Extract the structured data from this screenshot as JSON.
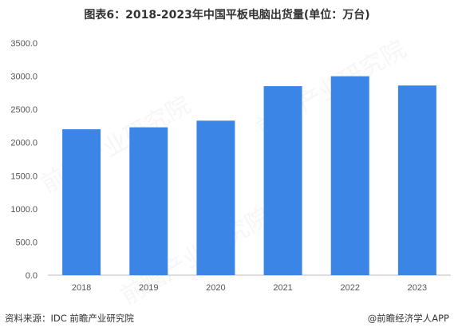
{
  "title": "图表6：2018-2023年中国平板电脑出货量(单位：万台)",
  "source": "资料来源：IDC 前瞻产业研究院",
  "brand": "@前瞻经济学人APP",
  "watermark": "前瞻产业研究院",
  "colors": {
    "bar": "#3A85E6",
    "axis": "#BBBBBB",
    "text": "#333333",
    "tick_text": "#555555"
  },
  "chart_data": {
    "type": "bar",
    "title": "图表6：2018-2023年中国平板电脑出货量(单位：万台)",
    "xlabel": "",
    "ylabel": "",
    "categories": [
      "2018",
      "2019",
      "2020",
      "2021",
      "2022",
      "2023"
    ],
    "values": [
      2200,
      2230,
      2330,
      2850,
      3000,
      2860
    ],
    "ylim": [
      0,
      3500
    ],
    "yticks": [
      "0.0",
      "500.0",
      "1000.0",
      "1500.0",
      "2000.0",
      "2500.0",
      "3000.0",
      "3500.0"
    ],
    "grid": false,
    "legend": "none"
  }
}
